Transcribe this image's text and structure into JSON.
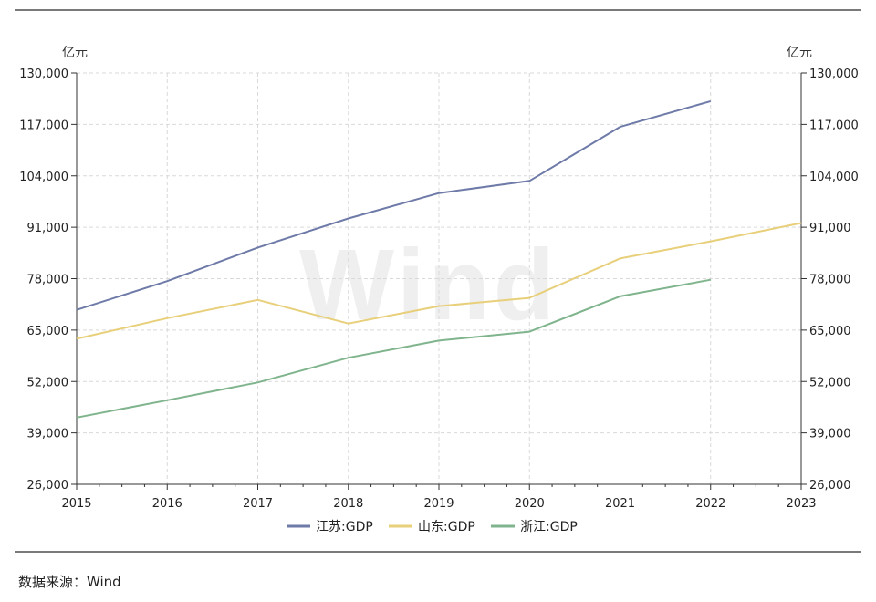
{
  "chart_data": {
    "type": "line",
    "unit_left": "亿元",
    "unit_right": "亿元",
    "x": [
      "2015",
      "2016",
      "2017",
      "2018",
      "2019",
      "2020",
      "2021",
      "2022",
      "2023"
    ],
    "ylim": [
      26000,
      130000
    ],
    "yticks": [
      "130,000",
      "117,000",
      "104,000",
      "91,000",
      "78,000",
      "65,000",
      "52,000",
      "39,000",
      "26,000"
    ],
    "ytick_values": [
      130000,
      117000,
      104000,
      91000,
      78000,
      65000,
      52000,
      39000,
      26000
    ],
    "grid": true,
    "legend_position": "bottom-center",
    "series": [
      {
        "name": "江苏:GDP",
        "color": "#6e7aa8",
        "values": [
          70116,
          77388,
          85870,
          93208,
          99632,
          102719,
          116364,
          122876,
          null
        ]
      },
      {
        "name": "山东:GDP",
        "color": "#e8cf7a",
        "values": [
          62802,
          68024,
          72634,
          66649,
          71068,
          73129,
          83096,
          87435,
          92069
        ]
      },
      {
        "name": "浙江:GDP",
        "color": "#7fb48c",
        "values": [
          42886,
          47251,
          51768,
          58003,
          62352,
          64613,
          73516,
          77715,
          null
        ]
      }
    ],
    "watermark": "Wind"
  },
  "source_text": "数据来源：Wind"
}
